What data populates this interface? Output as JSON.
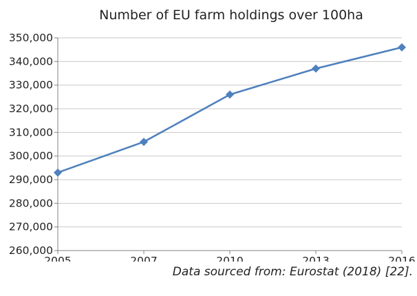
{
  "chart_data": {
    "type": "line",
    "title": "Number of EU farm holdings over 100ha",
    "xlabel": "",
    "ylabel": "",
    "x": [
      "2005",
      "2007",
      "2010",
      "2013",
      "2016"
    ],
    "series": [
      {
        "values": [
          293000,
          306000,
          326000,
          337000,
          346000
        ]
      }
    ],
    "ylim": [
      260000,
      350000
    ],
    "yticks": [
      260000,
      270000,
      280000,
      290000,
      300000,
      310000,
      320000,
      330000,
      340000,
      350000
    ],
    "ytick_labels": [
      "260,000",
      "270,000",
      "280,000",
      "290,000",
      "300,000",
      "310,000",
      "320,000",
      "330,000",
      "340,000",
      "350,000"
    ],
    "grid": true,
    "legend": "none",
    "colors": {
      "line": "#4f81bd",
      "marker": "#4f81bd",
      "grid": "#c8c8c8",
      "axis": "#808080"
    }
  },
  "source_note": "Data sourced from: Eurostat (2018) [22]."
}
